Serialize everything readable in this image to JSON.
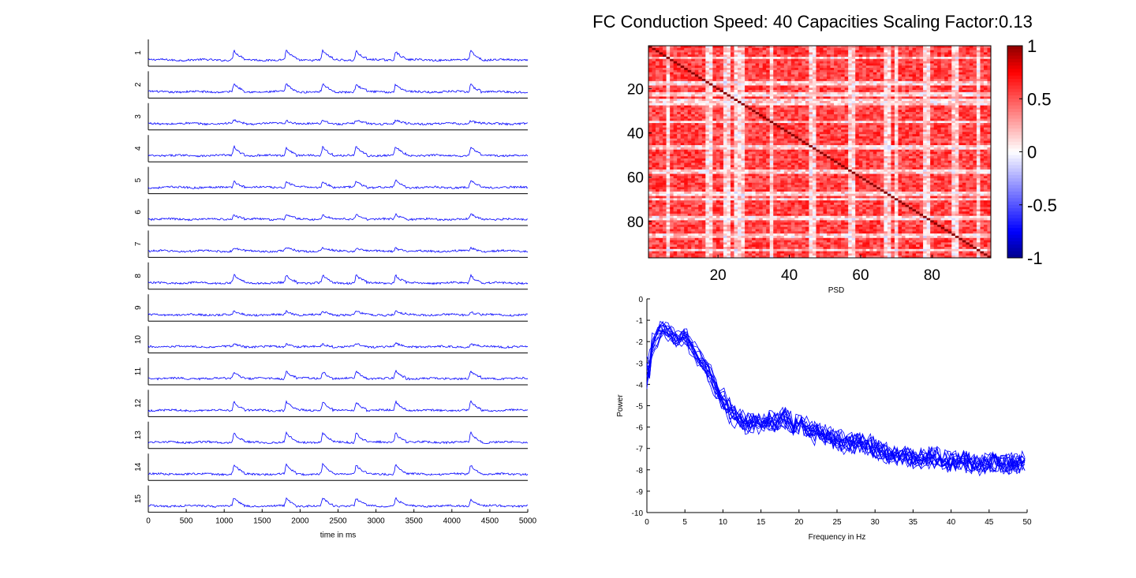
{
  "figure": {
    "title": "FC Conduction Speed: 40  Capacities Scaling Factor:0.13"
  },
  "chart_data": [
    {
      "type": "line",
      "panel": "time-series",
      "xlabel": "time in ms",
      "ylabel": "",
      "xlim": [
        0,
        5000
      ],
      "x_ticks": [
        0,
        500,
        1000,
        1500,
        2000,
        2500,
        3000,
        3500,
        4000,
        4500,
        5000
      ],
      "channel_labels": [
        "1",
        "2",
        "3",
        "4",
        "5",
        "6",
        "7",
        "8",
        "9",
        "10",
        "11",
        "12",
        "13",
        "14",
        "15"
      ],
      "line_color": "#0000ff",
      "burst_times_ms": [
        1130,
        1820,
        2300,
        2740,
        3260,
        4250
      ],
      "channel_burst_strength": [
        0.85,
        0.7,
        0.3,
        0.8,
        0.6,
        0.45,
        0.3,
        0.7,
        0.3,
        0.25,
        0.65,
        0.8,
        0.85,
        0.85,
        0.7
      ]
    },
    {
      "type": "heatmap",
      "panel": "correlation-matrix",
      "size": 96,
      "x_ticks": [
        20,
        40,
        60,
        80
      ],
      "y_ticks": [
        20,
        40,
        60,
        80
      ],
      "colorbar_ticks": [
        "1",
        "0.5",
        "0",
        "-0.5",
        "-1"
      ],
      "clim": [
        -1,
        1
      ],
      "colormap": {
        "neg": "#00008c",
        "zero": "#ffffff",
        "pos": "#8c0000"
      },
      "weak_rows": [
        5,
        16,
        17,
        21,
        22,
        24,
        25,
        26,
        34,
        45,
        46,
        56,
        57,
        66,
        67,
        69,
        77,
        78,
        85,
        86,
        92
      ],
      "typical_r": 0.55,
      "diagonal": 1
    },
    {
      "type": "line",
      "panel": "psd",
      "title": "PSD",
      "xlabel": "Frequency in Hz",
      "ylabel": "Power",
      "xlim": [
        0,
        50
      ],
      "ylim": [
        -10,
        0
      ],
      "x_ticks": [
        0,
        5,
        10,
        15,
        20,
        25,
        30,
        35,
        40,
        45,
        50
      ],
      "y_ticks": [
        0,
        -1,
        -2,
        -3,
        -4,
        -5,
        -6,
        -7,
        -8,
        -9,
        -10
      ],
      "line_color": "#0000ff",
      "n_series": 15,
      "mean_curve": {
        "x": [
          0,
          1,
          2,
          3,
          4,
          5,
          6,
          7,
          8,
          9,
          10,
          11,
          12,
          13,
          14,
          15,
          16,
          17,
          18,
          19,
          20,
          22,
          24,
          26,
          28,
          30,
          32,
          34,
          36,
          38,
          40,
          42,
          44,
          46,
          48,
          50
        ],
        "y": [
          -3.0,
          -2.0,
          -1.3,
          -1.6,
          -2.0,
          -1.7,
          -2.3,
          -2.9,
          -3.3,
          -4.1,
          -4.8,
          -5.3,
          -5.6,
          -5.9,
          -5.7,
          -5.9,
          -5.7,
          -5.8,
          -5.5,
          -5.9,
          -5.8,
          -6.3,
          -6.4,
          -6.8,
          -6.7,
          -7.0,
          -7.3,
          -7.4,
          -7.5,
          -7.4,
          -7.7,
          -7.6,
          -7.8,
          -7.6,
          -7.8,
          -7.6
        ]
      }
    }
  ]
}
